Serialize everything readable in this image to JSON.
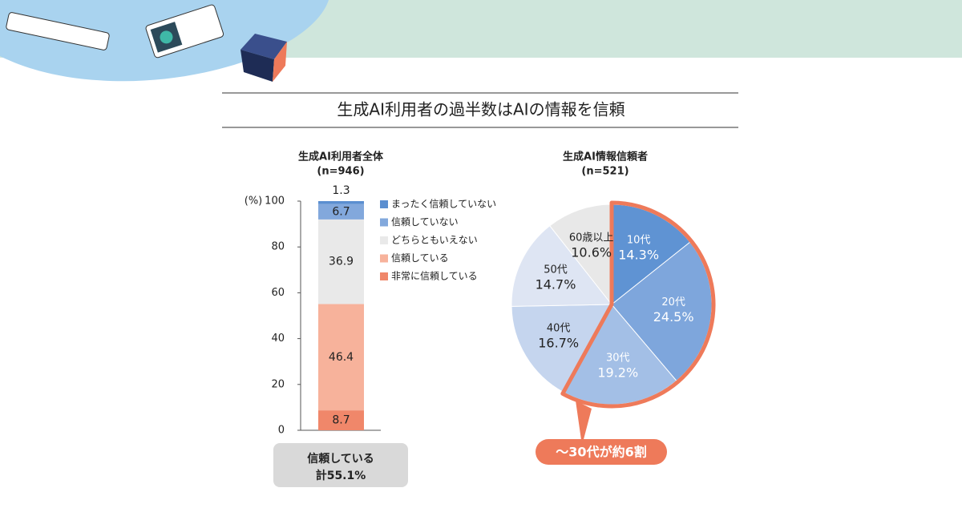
{
  "title": "生成AI利用者の過半数はAIの情報を信頼",
  "chart_data": [
    {
      "type": "stacked-bar",
      "title": "生成AI利用者全体",
      "subtitle": "(n=946)",
      "y_unit": "(%)",
      "ylim": [
        0,
        100
      ],
      "yticks": [
        0,
        20,
        40,
        60,
        80,
        100
      ],
      "series": [
        {
          "name": "非常に信頼している",
          "color": "#f0876a",
          "values": [
            8.7
          ]
        },
        {
          "name": "信頼している",
          "color": "#f7b29b",
          "values": [
            46.4
          ]
        },
        {
          "name": "どちらともいえない",
          "color": "#e9e9e9",
          "values": [
            36.9
          ]
        },
        {
          "name": "信頼していない",
          "color": "#82a8dc",
          "values": [
            6.7
          ]
        },
        {
          "name": "まったく信頼していない",
          "color": "#5b8fd0",
          "values": [
            1.3
          ]
        }
      ],
      "annotation": [
        "信頼している",
        "計55.1%"
      ]
    },
    {
      "type": "pie",
      "title": "生成AI情報信頼者",
      "subtitle": "(n=521)",
      "categories": [
        "10代",
        "20代",
        "30代",
        "40代",
        "50代",
        "60歳以上"
      ],
      "values": [
        14.3,
        24.5,
        19.2,
        16.7,
        14.7,
        10.6
      ],
      "value_labels": [
        "14.3%",
        "24.5%",
        "19.2%",
        "16.7%",
        "14.7%",
        "10.6%"
      ],
      "colors": [
        "#5f93d3",
        "#7ea6dc",
        "#a3bfe6",
        "#c5d5ee",
        "#dee5f3",
        "#e8e8e8"
      ],
      "highlight": [
        true,
        true,
        true,
        false,
        false,
        false
      ],
      "highlight_color": "#ee7a5a",
      "annotation": "〜30代が約6割"
    }
  ]
}
